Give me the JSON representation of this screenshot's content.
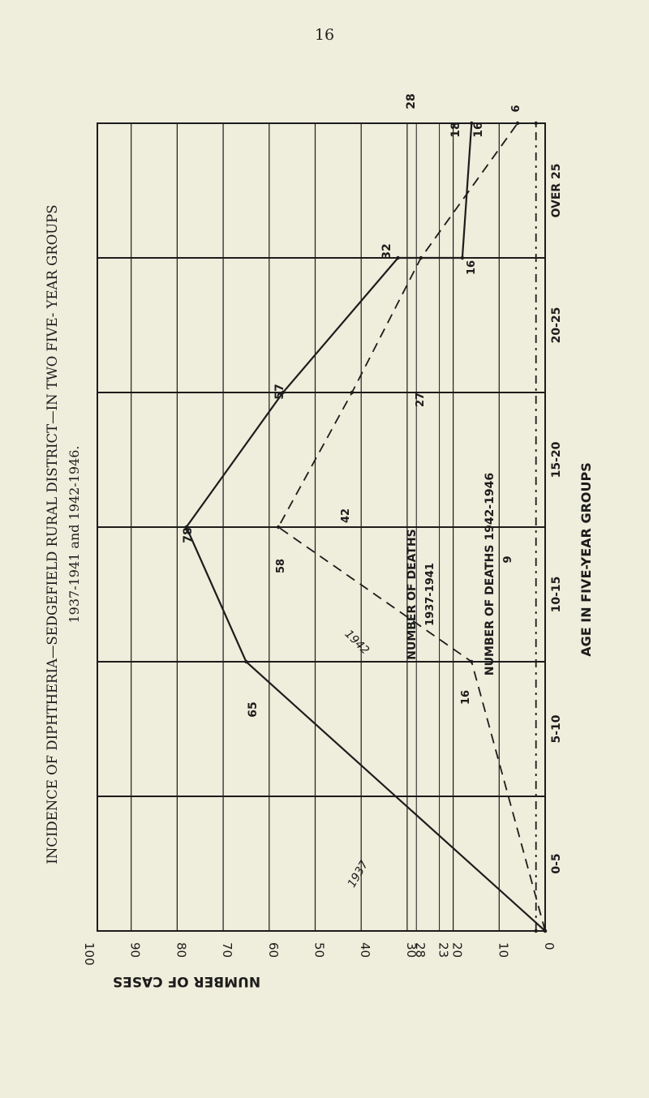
{
  "page_number": "16",
  "colors": {
    "background": "#efeddb",
    "ink": "#1c1c1c"
  },
  "chart_data": {
    "type": "line",
    "orientation": "rotated 90 degrees counter-clockwise",
    "title": "INCIDENCE OF DIPHTHERIA—SEDGEFIELD RURAL DISTRICT—IN TWO FIVE- YEAR GROUPS",
    "subtitle": "1937-1941 and 1942-1946.",
    "xlabel": "AGE IN FIVE-YEAR GROUPS",
    "ylabel": "NUMBER OF CASES",
    "categories": [
      "0-5",
      "5-10",
      "10-15",
      "15-20",
      "20-25",
      "OVER 25"
    ],
    "ylim": [
      0,
      100
    ],
    "yticks": [
      "0",
      "10",
      "20",
      "23",
      "28",
      "30",
      "40",
      "50",
      "60",
      "70",
      "80",
      "90",
      "100"
    ],
    "grid": true,
    "series": [
      {
        "name": "NUMBER OF DEATHS 1937-1941",
        "style": "solid",
        "points": [
          {
            "x": "0-5",
            "y": 0
          },
          {
            "x": "5-10",
            "y": 65
          },
          {
            "x": "10-15",
            "y": 78
          },
          {
            "x": "15-20",
            "y": 57
          },
          {
            "x": "20-25",
            "y": 32
          },
          {
            "x": "20-25",
            "y": 18
          },
          {
            "x": "OVER 25",
            "y": 16
          }
        ],
        "annotations": [
          "1937",
          "65",
          "78",
          "57",
          "32",
          "18",
          "16",
          "28"
        ]
      },
      {
        "name": "NUMBER OF DEATHS 1942-1946",
        "style": "dashed",
        "points": [
          {
            "x": "0-5",
            "y": 0
          },
          {
            "x": "5-10",
            "y": 16
          },
          {
            "x": "10-15",
            "y": 58
          },
          {
            "x": "15-20",
            "y": 42
          },
          {
            "x": "20-25",
            "y": 27
          },
          {
            "x": "OVER 25",
            "y": 6
          }
        ],
        "annotations": [
          "1942",
          "16",
          "58",
          "42",
          "27",
          "16",
          "6"
        ]
      },
      {
        "name": "Deaths",
        "style": "dash-dot vertical",
        "points": [
          {
            "x": "0-5",
            "y": 2
          },
          {
            "x": "OVER 25",
            "y": 2
          }
        ],
        "annotations": [
          "9"
        ]
      }
    ]
  }
}
